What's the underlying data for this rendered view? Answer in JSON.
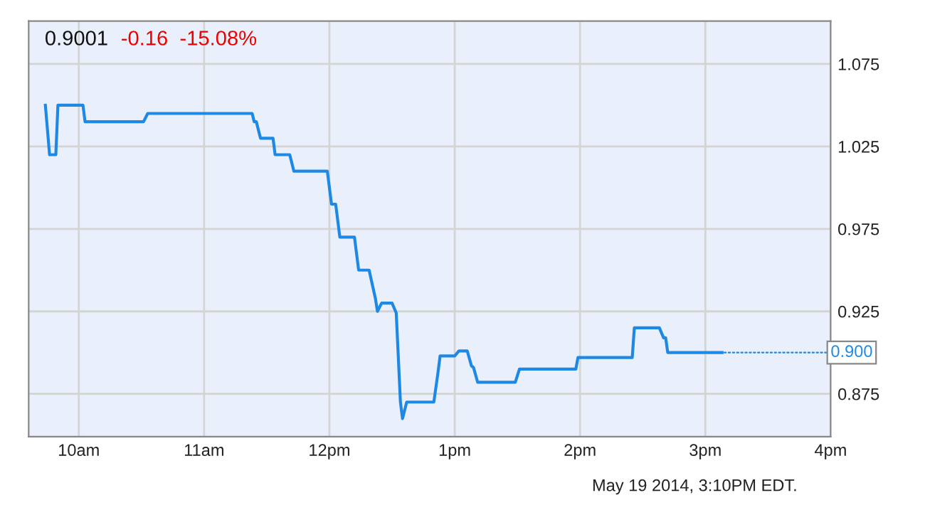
{
  "chart_data": {
    "type": "line",
    "title": "0.9001",
    "subtitle": "-0.16  -15.08%",
    "x": [
      "2014-05-19T09:44",
      "2014-05-19T09:46",
      "2014-05-19T09:49",
      "2014-05-19T09:50",
      "2014-05-19T10:02",
      "2014-05-19T10:03",
      "2014-05-19T10:31",
      "2014-05-19T10:33",
      "2014-05-19T11:23",
      "2014-05-19T11:24",
      "2014-05-19T11:25",
      "2014-05-19T11:27",
      "2014-05-19T11:33",
      "2014-05-19T11:34",
      "2014-05-19T11:41",
      "2014-05-19T11:43",
      "2014-05-19T11:59",
      "2014-05-19T12:01",
      "2014-05-19T12:03",
      "2014-05-19T12:05",
      "2014-05-19T12:12",
      "2014-05-19T12:14",
      "2014-05-19T12:19",
      "2014-05-19T12:22",
      "2014-05-19T12:23",
      "2014-05-19T12:25",
      "2014-05-19T12:30",
      "2014-05-19T12:32",
      "2014-05-19T12:34",
      "2014-05-19T12:35",
      "2014-05-19T12:37",
      "2014-05-19T12:50",
      "2014-05-19T12:52",
      "2014-05-19T12:53",
      "2014-05-19T13:00",
      "2014-05-19T13:02",
      "2014-05-19T13:06",
      "2014-05-19T13:08",
      "2014-05-19T13:09",
      "2014-05-19T13:11",
      "2014-05-19T13:29",
      "2014-05-19T13:31",
      "2014-05-19T13:58",
      "2014-05-19T13:59",
      "2014-05-19T14:25",
      "2014-05-19T14:26",
      "2014-05-19T14:38",
      "2014-05-19T14:40",
      "2014-05-19T14:41",
      "2014-05-19T14:42",
      "2014-05-19T15:08"
    ],
    "series": [
      {
        "color": "#1e88e5",
        "values": [
          1.05,
          1.02,
          1.02,
          1.05,
          1.05,
          1.04,
          1.04,
          1.045,
          1.045,
          1.04,
          1.04,
          1.03,
          1.03,
          1.02,
          1.02,
          1.01,
          1.01,
          0.99,
          0.99,
          0.97,
          0.97,
          0.95,
          0.95,
          0.933,
          0.925,
          0.93,
          0.93,
          0.924,
          0.87,
          0.86,
          0.87,
          0.87,
          0.888,
          0.898,
          0.898,
          0.901,
          0.901,
          0.892,
          0.891,
          0.882,
          0.882,
          0.89,
          0.89,
          0.897,
          0.897,
          0.915,
          0.915,
          0.909,
          0.909,
          0.9,
          0.9
        ]
      }
    ],
    "xlim": [
      "2014-05-19T09:36",
      "2014-05-19T16:00"
    ],
    "ylim": [
      0.849,
      1.101
    ],
    "xticks": [
      {
        "value": "2014-05-19T10:00",
        "label": "10am"
      },
      {
        "value": "2014-05-19T11:00",
        "label": "11am"
      },
      {
        "value": "2014-05-19T12:00",
        "label": "12pm"
      },
      {
        "value": "2014-05-19T13:00",
        "label": "1pm"
      },
      {
        "value": "2014-05-19T14:00",
        "label": "2pm"
      },
      {
        "value": "2014-05-19T15:00",
        "label": "3pm"
      },
      {
        "value": "2014-05-19T16:00",
        "label": "4pm"
      }
    ],
    "yticks": [
      {
        "value": 0.875,
        "label": "0.875"
      },
      {
        "value": 0.925,
        "label": "0.925"
      },
      {
        "value": 0.975,
        "label": "0.975"
      },
      {
        "value": 1.025,
        "label": "1.025"
      },
      {
        "value": 1.075,
        "label": "1.075"
      }
    ],
    "grid": true,
    "marker": "none",
    "line_style": "solid",
    "legend": false,
    "annotations": [
      {
        "text": "0.900",
        "x": "2014-05-19T15:08",
        "y": 0.9
      },
      "May 19 2014, 3:10PM EDT."
    ]
  }
}
